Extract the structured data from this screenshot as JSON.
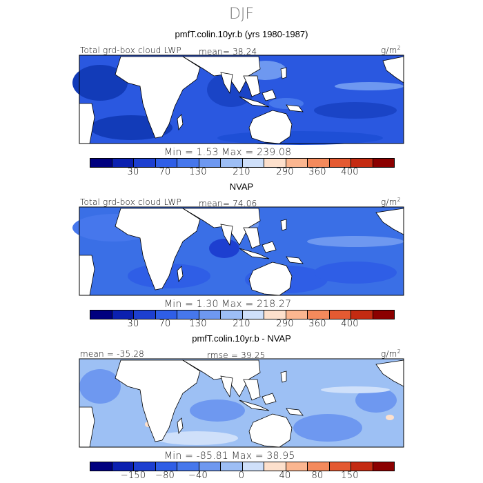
{
  "page_title": "DJF",
  "panels": [
    {
      "title": "pmfT.colin.10yr.b (yrs 1980-1987)",
      "left_label": "Total grd-box cloud LWP",
      "center_label": "mean=  38.24",
      "units": "g/m",
      "units_sup": "2",
      "minmax": "Min =   1.53 Max = 239.08",
      "ocean_color": "#2a58e0"
    },
    {
      "title": "NVAP",
      "left_label": "Total grd-box cloud LWP",
      "center_label": "mean=  74.06",
      "units": "g/m",
      "units_sup": "2",
      "minmax": "Min =   1.30 Max = 218.27",
      "ocean_color": "#3a6fe6"
    },
    {
      "title": "pmfT.colin.10yr.b - NVAP",
      "left_label": "mean = -35.28",
      "center_label": "rmse =  39.25",
      "units": "g/m",
      "units_sup": "2",
      "minmax": "Min = -85.81 Max =  38.95",
      "ocean_color": "#9dc0f4"
    }
  ],
  "colorbar_colors": [
    "#00007f",
    "#0b20b0",
    "#1d3fd0",
    "#2f5ee6",
    "#4677ec",
    "#6e98f0",
    "#9dbef5",
    "#cfe0fa",
    "#fde0cc",
    "#fbb690",
    "#f48a5c",
    "#e45a32",
    "#c42b12",
    "#8b0000"
  ],
  "colorbar_ticks_abs": [
    "30",
    "70",
    "130",
    "210",
    "290",
    "360",
    "400"
  ],
  "colorbar_ticks_diff": [
    "−150",
    "−80",
    "−40",
    "0",
    "40",
    "80",
    "150"
  ]
}
